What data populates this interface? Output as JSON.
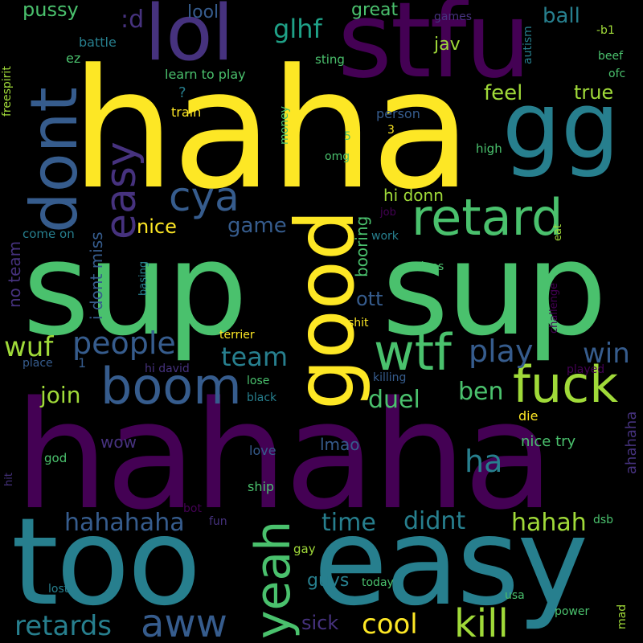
{
  "words": {
    "haha": "haha",
    "sup1": "sup",
    "sup2": "sup",
    "hahaha": "hahaha",
    "too": "too",
    "easy_big": "easy",
    "stfu": "stfu",
    "gg": "gg",
    "lol": "lol",
    "dont": "dont",
    "easy": "easy",
    "retard": "retard",
    "good": "good",
    "wtf": "wtf",
    "fuck": "fuck",
    "boom": "boom",
    "cya": "cya",
    "yeah": "yeah",
    "kill": "kill",
    "aww": "aww",
    "cool": "cool",
    "retards": "retards",
    "people": "people",
    "team": "team",
    "play": "play",
    "win": "win",
    "hahahaha": "hahahaha",
    "time": "time",
    "didnt": "didnt",
    "hahah": "hahah",
    "ha": "ha",
    "duel": "duel",
    "ben": "ben",
    "join": "join",
    "wuf": "wuf",
    "glhf": "glhf",
    "lool": "lool",
    "pussy": "pussy",
    "great": "great",
    "ball": "ball",
    "jav": "jav",
    "feel": "feel",
    "true": "true",
    "hi_donn": "hi donn",
    "nice": "nice",
    "game": "game",
    "ott": "ott",
    "booring": "booring",
    "no_team": "no team",
    "i_dont_miss": "i dont miss",
    "sick": "sick",
    "guys": "guys",
    "wow": "wow",
    "lmao": "lmao",
    "nice_try": "nice try",
    "ahahaha": "ahahaha",
    "die": "die",
    "d": ":d",
    "freespirit": "freespirit",
    "battle": "battle",
    "ez": "ez",
    "sting": "sting",
    "learn_to_play": "learn to play",
    "q": "?",
    "train": "train",
    "games": "games",
    "autism": "autism",
    "b1": "-b1",
    "beef": "beef",
    "ofc": "ofc",
    "person": "person",
    "money": "money",
    "n3": "3",
    "n5": "5",
    "omg": "omg",
    "high": "high",
    "job": "job",
    "work": "work",
    "eat": "eat",
    "come_on": "come on",
    "basing": "basing",
    "mines": "mines",
    "challenge": "challenge",
    "terrier": "terrier",
    "shit": "shit",
    "place": "place",
    "n1": "1",
    "hi_david": "hi david",
    "killing": "killing",
    "played": "played",
    "lose": "lose",
    "black": "black",
    "god": "god",
    "love": "love",
    "hit": "hit",
    "ship": "ship",
    "bot": "bot",
    "fun": "fun",
    "gay": "gay",
    "dsb": "dsb",
    "lost": "lost",
    "today": "today",
    "usa": "usa",
    "power": "power",
    "mad": "mad"
  },
  "colors": {
    "yellow": "#fde725",
    "lightgreen": "#a0da39",
    "green": "#4ac16d",
    "teal": "#1fa187",
    "cyan": "#277f8e",
    "blue": "#365c8d",
    "indigo": "#46327e",
    "purple": "#440154"
  }
}
